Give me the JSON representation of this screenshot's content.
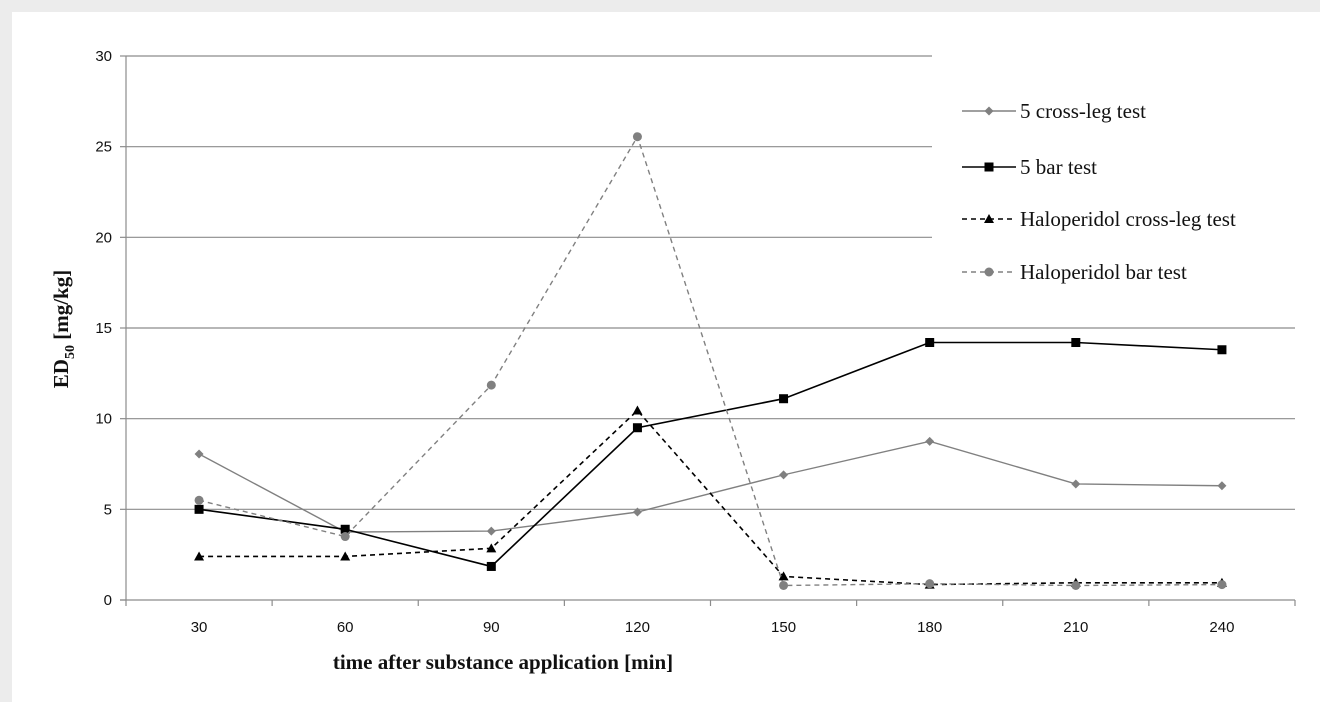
{
  "chart_data": {
    "type": "line",
    "xlabel": "time after substance application [min]",
    "ylabel_main": "ED",
    "ylabel_sub": "50",
    "ylabel_unit": " [mg/kg]",
    "categories": [
      "30",
      "60",
      "90",
      "120",
      "150",
      "180",
      "210",
      "240"
    ],
    "ylim": [
      0,
      30
    ],
    "yticks": [
      "0",
      "5",
      "10",
      "15",
      "20",
      "25",
      "30"
    ],
    "grid": "horizontal",
    "legend_position": "top-right",
    "series": [
      {
        "name": "5 cross-leg test",
        "values": [
          8.05,
          3.75,
          3.8,
          4.85,
          6.9,
          8.75,
          6.4,
          6.3
        ],
        "color": "#808080",
        "marker": "diamond",
        "dashed": false
      },
      {
        "name": "5 bar test",
        "values": [
          5.0,
          3.9,
          1.85,
          9.5,
          11.1,
          14.2,
          14.2,
          13.8
        ],
        "color": "#000000",
        "marker": "square",
        "dashed": false
      },
      {
        "name": "Haloperidol cross-leg test",
        "values": [
          2.4,
          2.4,
          2.85,
          10.45,
          1.3,
          0.85,
          0.95,
          0.95
        ],
        "color": "#000000",
        "marker": "triangle",
        "dashed": true
      },
      {
        "name": "Haloperidol bar test",
        "values": [
          5.5,
          3.5,
          11.85,
          25.55,
          0.8,
          0.9,
          0.8,
          0.85
        ],
        "color": "#808080",
        "marker": "circle",
        "dashed": true
      }
    ]
  }
}
